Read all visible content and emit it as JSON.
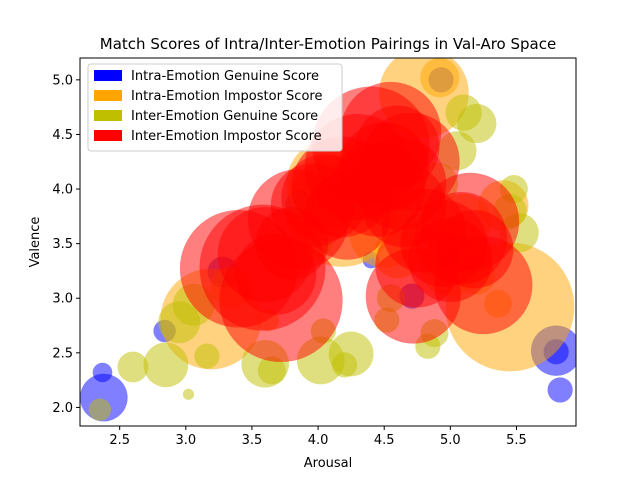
{
  "chart_data": {
    "type": "scatter",
    "title": "Match Scores of Intra/Inter-Emotion Pairings in Val-Aro Space",
    "xlabel": "Arousal",
    "ylabel": "Valence",
    "xlim": [
      2.2,
      5.95
    ],
    "ylim": [
      1.83,
      5.2
    ],
    "xticks": [
      "2.5",
      "3.0",
      "3.5",
      "4.0",
      "4.5",
      "5.0",
      "5.5"
    ],
    "yticks": [
      "2.0",
      "2.5",
      "3.0",
      "3.5",
      "4.0",
      "4.5",
      "5.0"
    ],
    "legend_position": "top-left",
    "series": [
      {
        "name": "Intra-Emotion Genuine Score",
        "color": "#0000ff",
        "points": [
          {
            "x": 2.37,
            "y": 2.32,
            "s": 0.7
          },
          {
            "x": 2.38,
            "y": 2.09,
            "s": 1.7
          },
          {
            "x": 2.84,
            "y": 2.7,
            "s": 0.8
          },
          {
            "x": 3.28,
            "y": 3.24,
            "s": 1.1
          },
          {
            "x": 3.86,
            "y": 3.86,
            "s": 1.0
          },
          {
            "x": 4.4,
            "y": 3.35,
            "s": 0.6
          },
          {
            "x": 4.71,
            "y": 3.02,
            "s": 0.9
          },
          {
            "x": 4.93,
            "y": 5.0,
            "s": 0.9
          },
          {
            "x": 5.8,
            "y": 2.52,
            "s": 1.8
          },
          {
            "x": 5.8,
            "y": 2.51,
            "s": 0.9
          },
          {
            "x": 5.83,
            "y": 2.16,
            "s": 0.9
          }
        ]
      },
      {
        "name": "Intra-Emotion Impostor Score",
        "color": "#ffa500",
        "points": [
          {
            "x": 3.19,
            "y": 2.81,
            "s": 3.6
          },
          {
            "x": 3.35,
            "y": 3.1,
            "s": 1.5
          },
          {
            "x": 3.62,
            "y": 2.8,
            "s": 0.8
          },
          {
            "x": 4.18,
            "y": 3.8,
            "s": 4.0
          },
          {
            "x": 4.1,
            "y": 4.05,
            "s": 3.2
          },
          {
            "x": 4.5,
            "y": 3.6,
            "s": 2.5
          },
          {
            "x": 4.6,
            "y": 3.4,
            "s": 1.7
          },
          {
            "x": 4.8,
            "y": 4.88,
            "s": 3.2
          },
          {
            "x": 5.0,
            "y": 3.3,
            "s": 2.2
          },
          {
            "x": 5.1,
            "y": 3.7,
            "s": 2.0
          },
          {
            "x": 5.45,
            "y": 2.92,
            "s": 4.6
          },
          {
            "x": 5.4,
            "y": 3.85,
            "s": 1.8
          },
          {
            "x": 5.2,
            "y": 3.2,
            "s": 1.3
          },
          {
            "x": 5.36,
            "y": 2.95,
            "s": 1.0
          },
          {
            "x": 4.92,
            "y": 5.02,
            "s": 1.4
          }
        ]
      },
      {
        "name": "Inter-Emotion Genuine Score",
        "color": "#bfbf00",
        "points": [
          {
            "x": 2.35,
            "y": 1.98,
            "s": 0.8
          },
          {
            "x": 2.6,
            "y": 2.37,
            "s": 1.1
          },
          {
            "x": 2.85,
            "y": 2.39,
            "s": 1.6
          },
          {
            "x": 2.95,
            "y": 2.78,
            "s": 1.5
          },
          {
            "x": 3.02,
            "y": 2.12,
            "s": 0.4
          },
          {
            "x": 3.06,
            "y": 2.94,
            "s": 1.5
          },
          {
            "x": 3.16,
            "y": 2.47,
            "s": 0.9
          },
          {
            "x": 3.6,
            "y": 2.4,
            "s": 1.7
          },
          {
            "x": 3.65,
            "y": 2.34,
            "s": 1.0
          },
          {
            "x": 4.02,
            "y": 2.43,
            "s": 1.7
          },
          {
            "x": 4.04,
            "y": 2.7,
            "s": 0.9
          },
          {
            "x": 4.2,
            "y": 2.39,
            "s": 0.9
          },
          {
            "x": 4.25,
            "y": 2.49,
            "s": 1.6
          },
          {
            "x": 4.52,
            "y": 2.8,
            "s": 0.9
          },
          {
            "x": 4.55,
            "y": 3.0,
            "s": 1.0
          },
          {
            "x": 4.83,
            "y": 2.56,
            "s": 0.9
          },
          {
            "x": 4.88,
            "y": 2.68,
            "s": 1.0
          },
          {
            "x": 5.05,
            "y": 4.35,
            "s": 1.4
          },
          {
            "x": 5.1,
            "y": 4.7,
            "s": 1.3
          },
          {
            "x": 5.2,
            "y": 4.6,
            "s": 1.4
          },
          {
            "x": 5.45,
            "y": 3.8,
            "s": 1.2
          },
          {
            "x": 5.48,
            "y": 4.0,
            "s": 1.0
          },
          {
            "x": 5.52,
            "y": 3.6,
            "s": 1.4
          },
          {
            "x": 4.9,
            "y": 4.05,
            "s": 1.5
          },
          {
            "x": 4.7,
            "y": 3.8,
            "s": 1.8
          },
          {
            "x": 4.0,
            "y": 3.5,
            "s": 1.0
          }
        ]
      },
      {
        "name": "Inter-Emotion Impostor Score",
        "color": "#ff0000",
        "points": [
          {
            "x": 3.4,
            "y": 3.27,
            "s": 4.2
          },
          {
            "x": 3.58,
            "y": 3.28,
            "s": 4.5
          },
          {
            "x": 3.72,
            "y": 2.98,
            "s": 4.4
          },
          {
            "x": 3.6,
            "y": 3.4,
            "s": 3.4
          },
          {
            "x": 3.68,
            "y": 3.22,
            "s": 2.9
          },
          {
            "x": 3.8,
            "y": 3.5,
            "s": 2.6
          },
          {
            "x": 3.85,
            "y": 3.72,
            "s": 3.6
          },
          {
            "x": 3.96,
            "y": 3.85,
            "s": 3.0
          },
          {
            "x": 4.05,
            "y": 3.92,
            "s": 3.1
          },
          {
            "x": 4.18,
            "y": 4.02,
            "s": 3.6
          },
          {
            "x": 4.22,
            "y": 3.75,
            "s": 3.1
          },
          {
            "x": 4.3,
            "y": 4.2,
            "s": 3.8
          },
          {
            "x": 4.4,
            "y": 4.4,
            "s": 4.2
          },
          {
            "x": 4.45,
            "y": 4.0,
            "s": 3.4
          },
          {
            "x": 4.5,
            "y": 4.2,
            "s": 3.2
          },
          {
            "x": 4.55,
            "y": 4.52,
            "s": 3.6
          },
          {
            "x": 4.6,
            "y": 4.38,
            "s": 3.0
          },
          {
            "x": 4.62,
            "y": 4.05,
            "s": 3.3
          },
          {
            "x": 4.65,
            "y": 3.85,
            "s": 3.0
          },
          {
            "x": 4.7,
            "y": 4.25,
            "s": 3.5
          },
          {
            "x": 4.75,
            "y": 3.3,
            "s": 3.0
          },
          {
            "x": 4.72,
            "y": 3.02,
            "s": 3.4
          },
          {
            "x": 4.8,
            "y": 3.62,
            "s": 3.0
          },
          {
            "x": 4.95,
            "y": 3.5,
            "s": 3.1
          },
          {
            "x": 5.0,
            "y": 3.35,
            "s": 3.0
          },
          {
            "x": 5.08,
            "y": 3.55,
            "s": 3.3
          },
          {
            "x": 5.15,
            "y": 3.7,
            "s": 3.5
          },
          {
            "x": 5.25,
            "y": 3.12,
            "s": 3.5
          },
          {
            "x": 5.18,
            "y": 3.45,
            "s": 2.8
          }
        ]
      }
    ]
  }
}
